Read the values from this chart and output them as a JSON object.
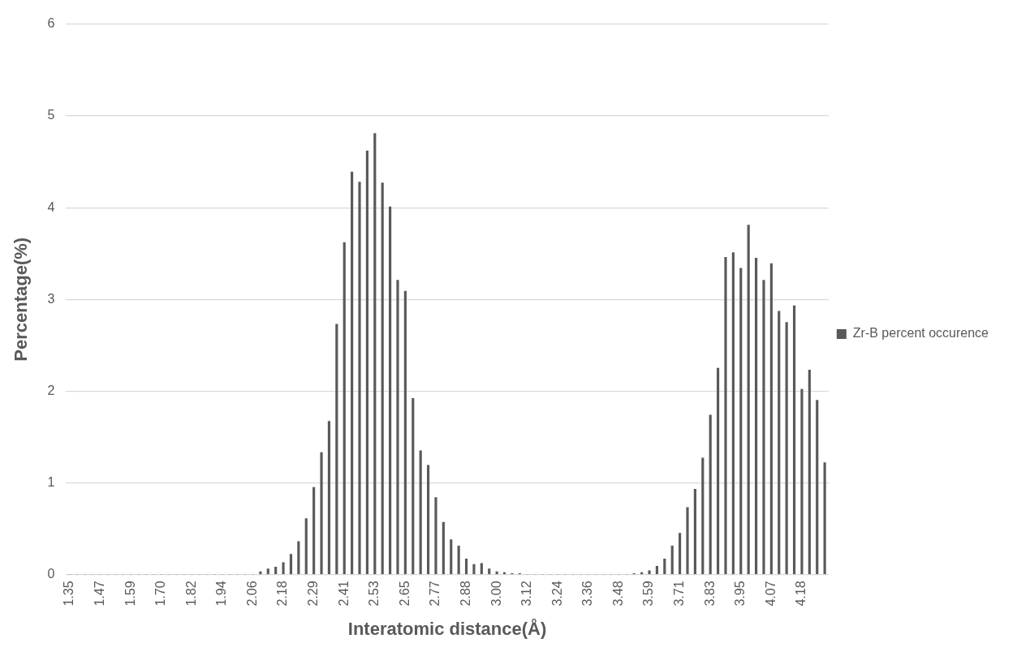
{
  "chart_data": {
    "type": "bar",
    "xlabel": "Interatomic distance(Å)",
    "ylabel": "Percentage(%)",
    "categories": [
      "1.35",
      null,
      null,
      null,
      "1.47",
      null,
      null,
      null,
      "1.59",
      null,
      null,
      null,
      "1.70",
      null,
      null,
      null,
      "1.82",
      null,
      null,
      null,
      "1.94",
      null,
      null,
      null,
      "2.06",
      null,
      null,
      null,
      "2.18",
      null,
      null,
      null,
      "2.29",
      null,
      null,
      null,
      "2.41",
      null,
      null,
      null,
      "2.53",
      null,
      null,
      null,
      "2.65",
      null,
      null,
      null,
      "2.77",
      null,
      null,
      null,
      "2.88",
      null,
      null,
      null,
      "3.00",
      null,
      null,
      null,
      "3.12",
      null,
      null,
      null,
      "3.24",
      null,
      null,
      null,
      "3.36",
      null,
      null,
      null,
      "3.48",
      null,
      null,
      null,
      "3.59",
      null,
      null,
      null,
      "3.71",
      null,
      null,
      null,
      "3.83",
      null,
      null,
      null,
      "3.95",
      null,
      null,
      null,
      "4.07",
      null,
      null,
      null,
      "4.18",
      null,
      null,
      null
    ],
    "series": [
      {
        "name": "Zr-B percent occurence",
        "color": "#595959",
        "values": [
          0,
          0,
          0,
          0,
          0,
          0,
          0,
          0,
          0,
          0,
          0,
          0,
          0,
          0,
          0,
          0,
          0,
          0,
          0,
          0,
          0,
          0,
          0,
          0,
          0,
          0.03,
          0.06,
          0.08,
          0.13,
          0.22,
          0.36,
          0.61,
          0.95,
          1.33,
          1.67,
          2.73,
          3.62,
          4.39,
          4.28,
          4.62,
          4.81,
          4.27,
          4.01,
          3.21,
          3.09,
          1.92,
          1.35,
          1.19,
          0.84,
          0.57,
          0.38,
          0.31,
          0.17,
          0.11,
          0.12,
          0.06,
          0.03,
          0.02,
          0.01,
          0.01,
          0,
          0,
          0,
          0,
          0,
          0,
          0,
          0,
          0,
          0,
          0,
          0,
          0,
          0,
          0.01,
          0.02,
          0.04,
          0.09,
          0.17,
          0.31,
          0.45,
          0.73,
          0.93,
          1.27,
          1.74,
          2.25,
          3.46,
          3.51,
          3.34,
          3.81,
          3.45,
          3.21,
          3.39,
          2.87,
          2.75,
          2.93,
          2.02,
          2.23,
          1.9,
          1.22
        ]
      }
    ],
    "ylim": [
      0,
      6
    ],
    "yticks": [
      0,
      1,
      2,
      3,
      4,
      5,
      6
    ],
    "grid": "y",
    "legend": "right"
  }
}
